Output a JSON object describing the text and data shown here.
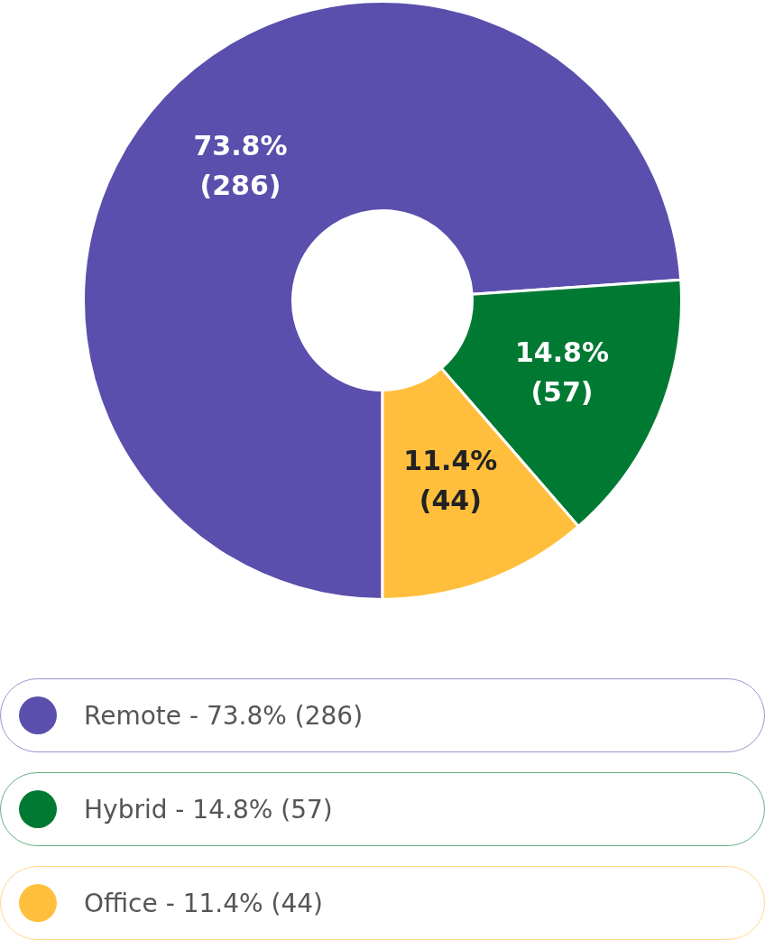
{
  "chart_data": {
    "type": "donut",
    "categories": [
      "Remote",
      "Hybrid",
      "Office"
    ],
    "values": [
      286,
      57,
      44
    ],
    "colors": [
      "#5a4fac",
      "#007a33",
      "#ffbf3c"
    ],
    "value_labels": [
      "73.8%\n(286)",
      "14.8%\n(57)",
      "11.4%\n(44)"
    ],
    "legend": "bottom"
  }
}
